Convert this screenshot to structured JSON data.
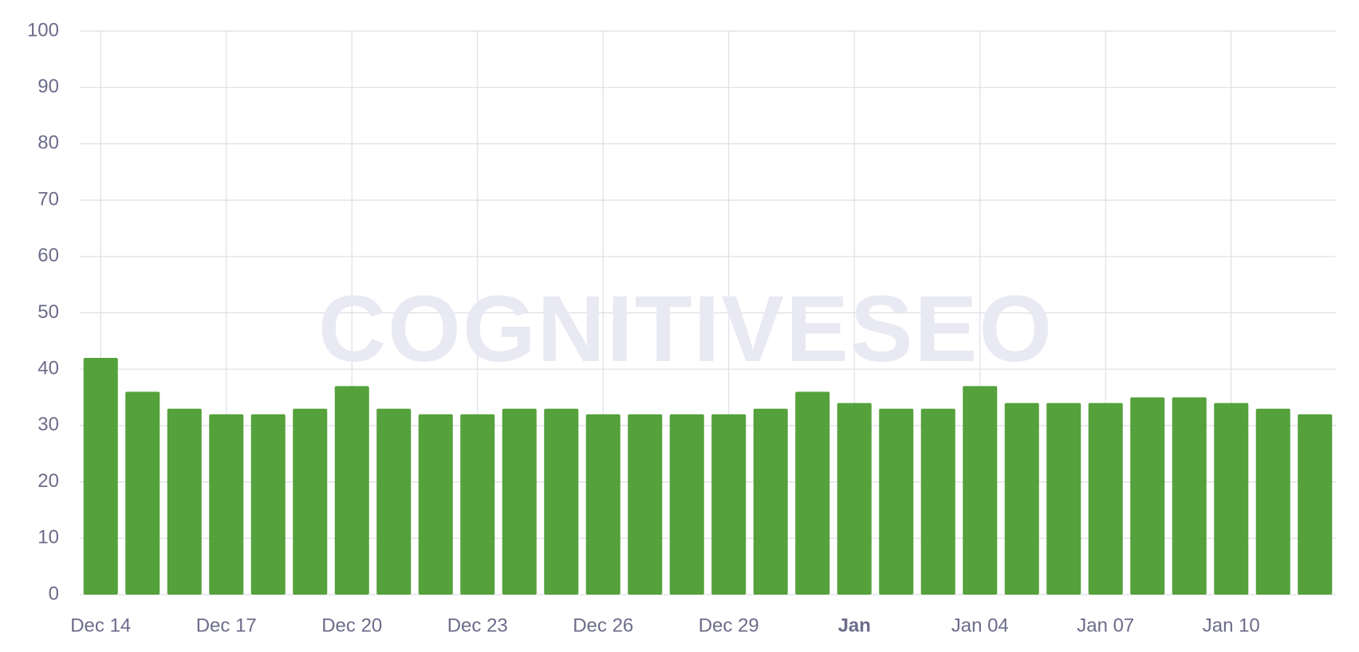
{
  "chart_data": {
    "type": "bar",
    "watermark": "COGNITIVESEO",
    "categories": [
      "Dec 14",
      null,
      null,
      "Dec 17",
      null,
      null,
      "Dec 20",
      null,
      null,
      "Dec 23",
      null,
      null,
      "Dec 26",
      null,
      null,
      "Dec 29",
      null,
      null,
      "Jan",
      null,
      null,
      "Jan 04",
      null,
      null,
      "Jan 07",
      null,
      null,
      "Jan 10",
      null,
      null
    ],
    "values": [
      42,
      36,
      33,
      32,
      32,
      33,
      37,
      33,
      32,
      32,
      33,
      33,
      32,
      32,
      32,
      32,
      33,
      36,
      34,
      33,
      33,
      37,
      34,
      34,
      34,
      35,
      35,
      34,
      33,
      32
    ],
    "color": "#4c9c32",
    "ylim": [
      0,
      100
    ],
    "yticks": [
      0,
      10,
      20,
      30,
      40,
      50,
      60,
      70,
      80,
      90,
      100
    ],
    "grid": true
  }
}
